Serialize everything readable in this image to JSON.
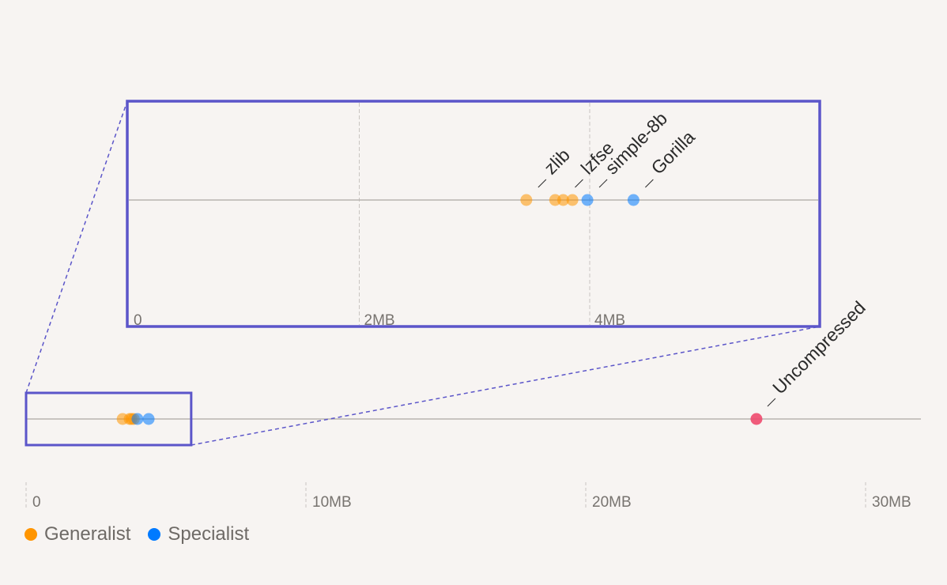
{
  "chart_data": {
    "type": "scatter",
    "colors": {
      "generalist": "#ff9500",
      "specialist": "#007aff",
      "uncompressed": "#ee4a6e",
      "zoom_box": "#5b55c9",
      "axis_line": "#b8b4b0",
      "grid": "#c9c5c1",
      "tick_text": "#77736f",
      "label_text": "#2b2b2b"
    },
    "main_axis": {
      "unit": "MB",
      "range": [
        0,
        31
      ],
      "ticks": [
        {
          "value": 0,
          "label": "0"
        },
        {
          "value": 10,
          "label": "10MB"
        },
        {
          "value": 20,
          "label": "20MB"
        },
        {
          "value": 30,
          "label": "30MB"
        }
      ]
    },
    "zoom_axis": {
      "unit": "MB",
      "range": [
        0,
        6
      ],
      "ticks": [
        {
          "value": 0,
          "label": "0"
        },
        {
          "value": 2,
          "label": "2MB"
        },
        {
          "value": 4,
          "label": "4MB"
        }
      ]
    },
    "zoom_region": [
      0,
      5.9
    ],
    "series": [
      {
        "name": "Generalist",
        "group": "generalist",
        "points": [
          {
            "label": "zlib",
            "value": 3.45
          },
          {
            "label": "",
            "value": 3.7
          },
          {
            "label": "lzfse",
            "value": 3.77
          },
          {
            "label": "",
            "value": 3.85
          }
        ]
      },
      {
        "name": "Specialist",
        "group": "specialist",
        "points": [
          {
            "label": "simple-8b",
            "value": 3.98
          },
          {
            "label": "Gorilla",
            "value": 4.38
          }
        ]
      },
      {
        "name": "",
        "group": "uncompressed",
        "points": [
          {
            "label": "Uncompressed",
            "value": 26.1
          }
        ]
      }
    ],
    "legend": [
      {
        "label": "Generalist",
        "group": "generalist"
      },
      {
        "label": "Specialist",
        "group": "specialist"
      }
    ],
    "legend_position": "bottom-left",
    "grid": true
  }
}
